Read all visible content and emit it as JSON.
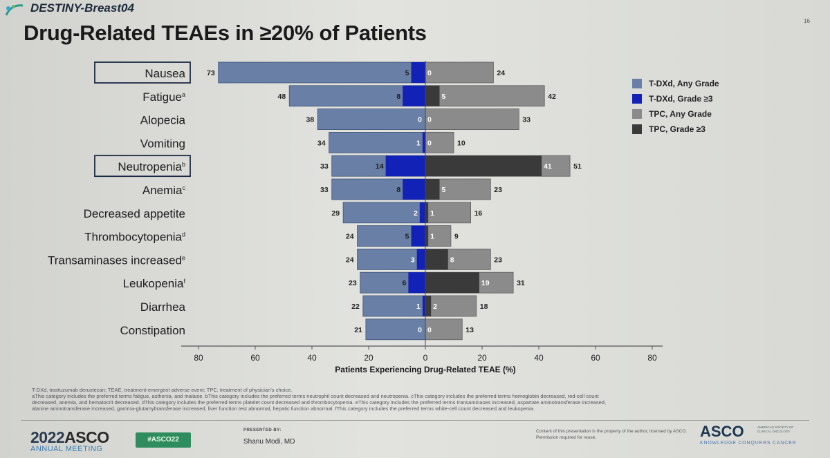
{
  "header": {
    "study": "DESTINY-Breast04",
    "title": "Drug-Related TEAEs in ≥20% of Patients",
    "slide_number": "16"
  },
  "colors": {
    "tdxd_any": "#6a7fa6",
    "tdxd_g3": "#1322b6",
    "tpc_any": "#8b8b8b",
    "tpc_g3": "#3a3a3a"
  },
  "chart_data": {
    "type": "bar",
    "orientation": "horizontal-diverging",
    "xlabel": "Patients Experiencing Drug-Related TEAE (%)",
    "xlim": [
      -80,
      80
    ],
    "xticks": [
      -80,
      -60,
      -40,
      -20,
      0,
      20,
      40,
      60,
      80
    ],
    "xtick_labels": [
      "80",
      "60",
      "40",
      "20",
      "0",
      "20",
      "40",
      "60",
      "80"
    ],
    "categories": [
      "Nausea",
      "Fatigue",
      "Alopecia",
      "Vomiting",
      "Neutropenia",
      "Anemia",
      "Decreased appetite",
      "Thrombocytopenia",
      "Transaminases increased",
      "Leukopenia",
      "Diarrhea",
      "Constipation"
    ],
    "superscripts": [
      "",
      "a",
      "",
      "",
      "b",
      "c",
      "",
      "d",
      "e",
      "f",
      "",
      ""
    ],
    "boxed": [
      true,
      false,
      false,
      false,
      true,
      false,
      false,
      false,
      false,
      false,
      false,
      false
    ],
    "legend_position": "right",
    "series": [
      {
        "name": "T-DXd, Any Grade",
        "side": "left",
        "values": [
          73,
          48,
          38,
          34,
          33,
          33,
          29,
          24,
          24,
          23,
          22,
          21
        ]
      },
      {
        "name": "T-DXd, Grade ≥3",
        "side": "left",
        "values": [
          5,
          8,
          0,
          1,
          14,
          8,
          2,
          5,
          3,
          6,
          1,
          0
        ]
      },
      {
        "name": "TPC, Any Grade",
        "side": "right",
        "values": [
          24,
          42,
          33,
          10,
          51,
          23,
          16,
          9,
          23,
          31,
          18,
          13
        ]
      },
      {
        "name": "TPC, Grade ≥3",
        "side": "right",
        "values": [
          0,
          5,
          0,
          0,
          41,
          5,
          1,
          1,
          8,
          19,
          2,
          0
        ]
      }
    ]
  },
  "footnotes": [
    "T-DXd, trastuzumab deruxtecan; TEAE, treatment-emergent adverse event; TPC, treatment of physician's choice.",
    "aThis category includes the preferred terms fatigue, asthenia, and malaise. bThis category includes the preferred terms neutrophil count decreased and neutropenia. cThis category includes the preferred terms hemoglobin decreased, red-cell count",
    "decreased, anemia, and hematocrit decreased. dThis category includes the preferred terms platelet count decreased and thrombocytopenia. eThis category includes the preferred terms transaminases increased, aspartate aminotransferase increased,",
    "alanine aminotransferase increased, gamma-glutamyltransferase increased, liver function test abnormal, hepatic function abnormal. fThis category includes the preferred terms white-cell count decreased and leukopenia."
  ],
  "footer": {
    "year": "2022",
    "org": "ASCO",
    "meeting": "ANNUAL MEETING",
    "hashtag": "#ASCO22",
    "presented_by": "PRESENTED BY:",
    "presenter": "Shanu Modi, MD",
    "disclaimer": "Content of this presentation is the property of the author, licensed by ASCO. Permission required for reuse.",
    "logo": "ASCO",
    "logo_side": "AMERICAN SOCIETY OF CLINICAL ONCOLOGY",
    "tagline": "KNOWLEDGE CONQUERS CANCER"
  }
}
